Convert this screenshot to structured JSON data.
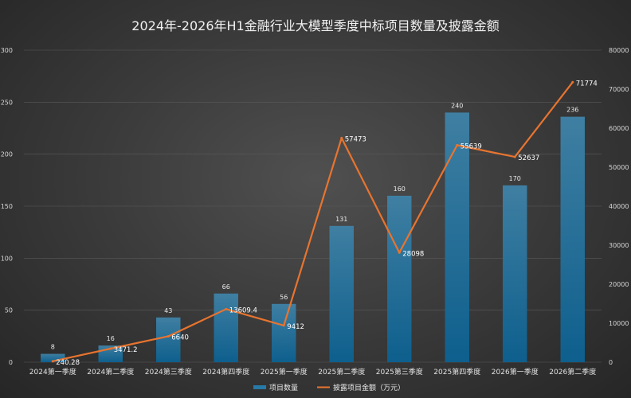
{
  "chart_data": {
    "type": "bar+line",
    "title": "2024年-2026年H1金融行业大模型季度中标项目数量及披露金额",
    "categories": [
      "2024第一季度",
      "2024第二季度",
      "2024第三季度",
      "2024第四季度",
      "2025第一季度",
      "2025第二季度",
      "2025第三季度",
      "2025第四季度",
      "2026第一季度",
      "2026第二季度"
    ],
    "series": [
      {
        "name": "项目数量",
        "type": "bar",
        "axis": "left",
        "color": "#1f6f97",
        "values": [
          8,
          16,
          43,
          66,
          56,
          131,
          160,
          240,
          170,
          236
        ],
        "labels": [
          "8",
          "16",
          "43",
          "66",
          "56",
          "131",
          "160",
          "240",
          "170",
          "236"
        ]
      },
      {
        "name": "披露项目金额（万元）",
        "type": "line",
        "axis": "right",
        "color": "#e8742f",
        "values": [
          240.28,
          3471.2,
          6640,
          13609.4,
          9412,
          57473,
          28098,
          55639,
          52637,
          71774
        ],
        "labels": [
          "240.28",
          "3471.2",
          "6640",
          "13609.4",
          "9412",
          "57473",
          "28098",
          "55639",
          "52637",
          "71774"
        ]
      }
    ],
    "y_left": {
      "range": [
        0,
        300
      ],
      "ticks": [
        "0",
        "50",
        "100",
        "150",
        "200",
        "250",
        "300"
      ]
    },
    "y_right": {
      "range": [
        0,
        80000
      ],
      "ticks": [
        "0",
        "10000",
        "20000",
        "30000",
        "40000",
        "50000",
        "60000",
        "70000",
        "80000"
      ]
    },
    "grid": true,
    "legend": "bottom-center"
  }
}
